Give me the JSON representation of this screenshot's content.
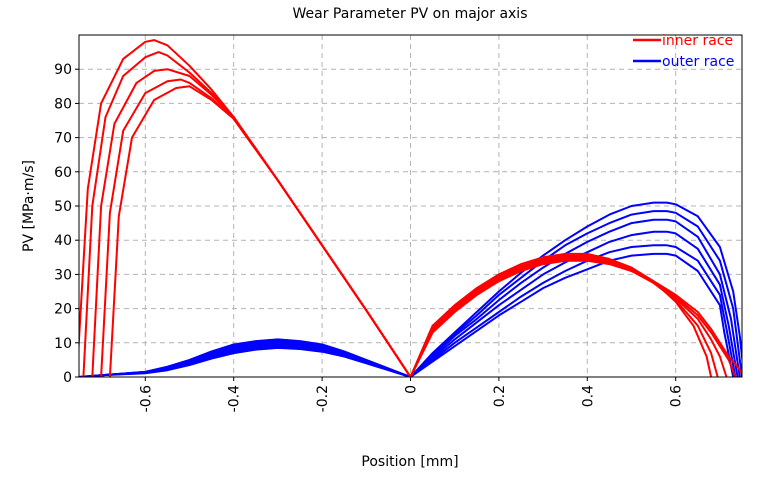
{
  "chart_data": {
    "type": "line",
    "title": "Wear Parameter PV on major axis",
    "xlabel": "Position [mm]",
    "ylabel": "PV [MPa·m/s]",
    "xlim": [
      -0.75,
      0.75
    ],
    "ylim": [
      0,
      100
    ],
    "xticks": [
      -0.6,
      -0.4,
      -0.2,
      0,
      0.2,
      0.4,
      0.6
    ],
    "xtick_labels": [
      "-0.6",
      "-0.4",
      "-0.2",
      "0",
      "0.2",
      "0.4",
      "0.6"
    ],
    "yticks": [
      0,
      10,
      20,
      30,
      40,
      50,
      60,
      70,
      80,
      90
    ],
    "ytick_labels": [
      "0",
      "10",
      "20",
      "30",
      "40",
      "50",
      "60",
      "70",
      "80",
      "90"
    ],
    "grid": true,
    "legend_position": "top-right",
    "groups": [
      {
        "name": "inner race",
        "color": "#ff0000",
        "curves": [
          {
            "x": [
              -0.755,
              -0.73,
              -0.7,
              -0.65,
              -0.6,
              -0.58,
              -0.55,
              -0.5,
              -0.45,
              -0.4,
              -0.3,
              -0.2,
              -0.1,
              0,
              0.05,
              0.1,
              0.15,
              0.2,
              0.25,
              0.3,
              0.35,
              0.4,
              0.45,
              0.5,
              0.55,
              0.6,
              0.65,
              0.68,
              0.7,
              0.72,
              0.74,
              0.755
            ],
            "y": [
              0,
              55,
              80,
              93,
              98,
              98.5,
              97,
              91,
              84,
              76,
              57.5,
              38.5,
              19.5,
              0,
              13,
              19,
              24,
              28,
              31,
              33,
              34,
              34,
              33,
              31,
              28,
              24,
              19,
              14,
              10,
              6,
              3,
              0
            ]
          },
          {
            "x": [
              -0.74,
              -0.72,
              -0.69,
              -0.65,
              -0.6,
              -0.57,
              -0.55,
              -0.5,
              -0.45,
              -0.4,
              -0.3,
              -0.2,
              -0.1,
              0,
              0.05,
              0.1,
              0.15,
              0.2,
              0.25,
              0.3,
              0.35,
              0.4,
              0.45,
              0.5,
              0.55,
              0.6,
              0.65,
              0.68,
              0.7,
              0.72,
              0.735
            ],
            "y": [
              0,
              50,
              76,
              88,
              93.5,
              95,
              94,
              89,
              83,
              76,
              57.5,
              38.5,
              19.5,
              0,
              13.5,
              19.5,
              24.5,
              28.5,
              31.5,
              33.5,
              34.5,
              34.5,
              33.5,
              31,
              27.5,
              23.5,
              18,
              13,
              9,
              5,
              0
            ]
          },
          {
            "x": [
              -0.72,
              -0.7,
              -0.67,
              -0.62,
              -0.58,
              -0.55,
              -0.5,
              -0.45,
              -0.4,
              -0.3,
              -0.2,
              -0.1,
              0,
              0.05,
              0.1,
              0.15,
              0.2,
              0.25,
              0.3,
              0.35,
              0.4,
              0.45,
              0.5,
              0.55,
              0.6,
              0.65,
              0.68,
              0.7,
              0.715
            ],
            "y": [
              0,
              50,
              74,
              86,
              89.5,
              90,
              88,
              82.5,
              76,
              57.5,
              38.5,
              19.5,
              0,
              14,
              20,
              25,
              29,
              32,
              34,
              35,
              35,
              34,
              31.5,
              27.5,
              23,
              17,
              11,
              6,
              0
            ]
          },
          {
            "x": [
              -0.7,
              -0.68,
              -0.65,
              -0.6,
              -0.55,
              -0.52,
              -0.5,
              -0.45,
              -0.4,
              -0.3,
              -0.2,
              -0.1,
              0,
              0.05,
              0.1,
              0.15,
              0.2,
              0.25,
              0.3,
              0.35,
              0.4,
              0.45,
              0.5,
              0.55,
              0.6,
              0.65,
              0.68,
              0.695
            ],
            "y": [
              0,
              48,
              72,
              83,
              86.5,
              87,
              86,
              81.5,
              75.5,
              57.5,
              38.5,
              19.5,
              0,
              14.5,
              20.5,
              25.5,
              29.5,
              32.5,
              34.5,
              35.5,
              35.5,
              34,
              31.5,
              27.5,
              22.5,
              15,
              7,
              0
            ]
          },
          {
            "x": [
              -0.68,
              -0.66,
              -0.63,
              -0.58,
              -0.53,
              -0.5,
              -0.45,
              -0.4,
              -0.3,
              -0.2,
              -0.1,
              0,
              0.05,
              0.1,
              0.15,
              0.2,
              0.25,
              0.3,
              0.35,
              0.4,
              0.45,
              0.5,
              0.55,
              0.6,
              0.64,
              0.67,
              0.68
            ],
            "y": [
              0,
              47,
              70,
              81,
              84.5,
              85,
              81,
              75.5,
              57.5,
              38.5,
              19.5,
              0,
              15,
              21,
              26,
              30,
              33,
              35,
              36,
              36,
              34.5,
              32,
              28,
              22,
              15,
              6,
              0
            ]
          }
        ]
      },
      {
        "name": "outer race",
        "color": "#0000ff",
        "curves": [
          {
            "x": [
              -0.755,
              -0.7,
              -0.65,
              -0.6,
              -0.55,
              -0.5,
              -0.45,
              -0.4,
              -0.35,
              -0.3,
              -0.25,
              -0.2,
              -0.15,
              -0.1,
              -0.05,
              0,
              0.05,
              0.1,
              0.15,
              0.2,
              0.25,
              0.3,
              0.35,
              0.4,
              0.45,
              0.5,
              0.55,
              0.58,
              0.6,
              0.65,
              0.7,
              0.73,
              0.745,
              0.755
            ],
            "y": [
              0,
              0.5,
              1,
              1.5,
              3,
              5,
              7.5,
              9.5,
              10.5,
              11,
              10.5,
              9.5,
              7.5,
              5,
              2.5,
              0,
              7,
              13,
              19,
              25,
              30.5,
              35.5,
              40,
              44,
              47.5,
              50,
              51,
              51,
              50.5,
              47,
              38,
              25,
              12,
              0
            ]
          },
          {
            "x": [
              -0.75,
              -0.7,
              -0.65,
              -0.6,
              -0.55,
              -0.5,
              -0.45,
              -0.4,
              -0.35,
              -0.3,
              -0.25,
              -0.2,
              -0.15,
              -0.1,
              -0.05,
              0,
              0.05,
              0.1,
              0.15,
              0.2,
              0.25,
              0.3,
              0.35,
              0.4,
              0.45,
              0.5,
              0.55,
              0.58,
              0.6,
              0.65,
              0.7,
              0.73,
              0.75
            ],
            "y": [
              0,
              0.5,
              1,
              1.5,
              2.8,
              4.7,
              7,
              9,
              10,
              10.5,
              10,
              9,
              7.2,
              4.8,
              2.4,
              0,
              6.5,
              12.5,
              18,
              24,
              29,
              34,
              38.5,
              42,
              45,
              47.5,
              48.5,
              48.5,
              48,
              44,
              34,
              20,
              0
            ]
          },
          {
            "x": [
              -0.745,
              -0.7,
              -0.65,
              -0.6,
              -0.55,
              -0.5,
              -0.45,
              -0.4,
              -0.35,
              -0.3,
              -0.25,
              -0.2,
              -0.15,
              -0.1,
              -0.05,
              0,
              0.05,
              0.1,
              0.15,
              0.2,
              0.25,
              0.3,
              0.35,
              0.4,
              0.45,
              0.5,
              0.55,
              0.58,
              0.6,
              0.65,
              0.7,
              0.725,
              0.745
            ],
            "y": [
              0,
              0.5,
              1,
              1.4,
              2.6,
              4.4,
              6.6,
              8.5,
              9.5,
              10,
              9.6,
              8.6,
              6.9,
              4.6,
              2.3,
              0,
              6,
              12,
              17,
              22.5,
              27.5,
              32,
              36,
              39.5,
              42.5,
              45,
              46,
              46,
              45.5,
              41,
              30,
              17,
              0
            ]
          },
          {
            "x": [
              -0.74,
              -0.7,
              -0.65,
              -0.6,
              -0.55,
              -0.5,
              -0.45,
              -0.4,
              -0.35,
              -0.3,
              -0.25,
              -0.2,
              -0.15,
              -0.1,
              -0.05,
              0,
              0.05,
              0.1,
              0.15,
              0.2,
              0.25,
              0.3,
              0.35,
              0.4,
              0.45,
              0.5,
              0.55,
              0.58,
              0.6,
              0.65,
              0.7,
              0.72,
              0.74
            ],
            "y": [
              0,
              0.5,
              0.9,
              1.3,
              2.4,
              4.1,
              6.2,
              8,
              9,
              9.5,
              9.2,
              8.2,
              6.6,
              4.4,
              2.2,
              0,
              5.5,
              11,
              16,
              21,
              25.5,
              30,
              33.5,
              36.5,
              39.5,
              41.5,
              42.5,
              42.5,
              42,
              37.5,
              27,
              15,
              0
            ]
          },
          {
            "x": [
              -0.735,
              -0.7,
              -0.65,
              -0.6,
              -0.55,
              -0.5,
              -0.45,
              -0.4,
              -0.35,
              -0.3,
              -0.25,
              -0.2,
              -0.15,
              -0.1,
              -0.05,
              0,
              0.05,
              0.1,
              0.15,
              0.2,
              0.25,
              0.3,
              0.35,
              0.4,
              0.45,
              0.5,
              0.55,
              0.58,
              0.6,
              0.65,
              0.7,
              0.715,
              0.735
            ],
            "y": [
              0,
              0.5,
              0.9,
              1.2,
              2.2,
              3.8,
              5.8,
              7.5,
              8.5,
              9,
              8.7,
              7.8,
              6.3,
              4.2,
              2.1,
              0,
              5,
              10,
              14.5,
              19,
              23.5,
              27.5,
              31,
              34,
              36.5,
              38,
              38.5,
              38.5,
              38,
              34,
              24,
              14,
              0
            ]
          },
          {
            "x": [
              -0.73,
              -0.7,
              -0.65,
              -0.6,
              -0.55,
              -0.5,
              -0.45,
              -0.4,
              -0.35,
              -0.3,
              -0.25,
              -0.2,
              -0.15,
              -0.1,
              -0.05,
              0,
              0.05,
              0.1,
              0.15,
              0.2,
              0.25,
              0.3,
              0.35,
              0.4,
              0.45,
              0.5,
              0.55,
              0.58,
              0.6,
              0.65,
              0.7,
              0.71,
              0.73
            ],
            "y": [
              0,
              0.5,
              0.8,
              1.1,
              2,
              3.5,
              5.4,
              7,
              8,
              8.5,
              8.2,
              7.4,
              6,
              4,
              2,
              0,
              4.5,
              9,
              13.5,
              18,
              22,
              26,
              29,
              31.5,
              34,
              35.5,
              36,
              36,
              35.5,
              31,
              21,
              13,
              0
            ]
          }
        ]
      }
    ]
  }
}
